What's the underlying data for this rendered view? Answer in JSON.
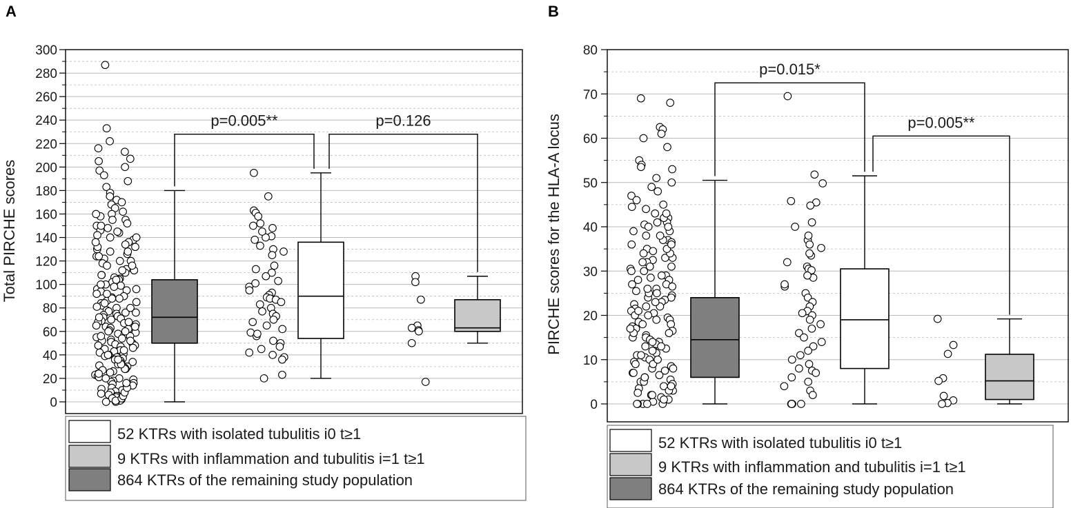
{
  "figure": {
    "colors": {
      "axis": "#000000",
      "grid": "#b8b8b8",
      "box_remaining": "#7f7f7f",
      "box_isolated": "#ffffff",
      "box_inflammation": "#c8c8c8",
      "point_fill": "#ffffff",
      "point_stroke": "#000000"
    },
    "legend": [
      {
        "label": "52 KTRs with isolated tubulitis i0 t≥1",
        "color": "#ffffff"
      },
      {
        "label": "9 KTRs with inflammation and tubulitis i=1 t≥1",
        "color": "#c8c8c8"
      },
      {
        "label": "864 KTRs of the remaining study population",
        "color": "#7f7f7f"
      }
    ]
  },
  "chart_data": [
    {
      "panel": "A",
      "type": "box",
      "ylabel": "Total PIRCHE scores",
      "ylim": [
        -10,
        300
      ],
      "ytick_step": 20,
      "grid": true,
      "groups": [
        {
          "name": "864 KTRs of the remaining study population",
          "color": "#7f7f7f",
          "whisker_low": 0,
          "q1": 50,
          "median": 72,
          "q3": 104,
          "whisker_high": 180,
          "points": [
            287,
            233,
            222,
            216,
            213,
            207,
            205,
            200,
            197,
            193,
            188,
            183,
            178,
            175,
            172,
            170,
            168,
            165,
            162,
            160,
            158,
            155,
            152,
            150,
            148,
            146,
            144,
            142,
            140,
            138,
            136,
            134,
            132,
            130,
            128,
            126,
            124,
            122,
            120,
            118,
            116,
            114,
            113,
            112,
            110,
            108,
            106,
            105,
            104,
            102,
            100,
            99,
            98,
            96,
            95,
            94,
            92,
            90,
            89,
            88,
            86,
            85,
            84,
            82,
            81,
            80,
            78,
            77,
            76,
            75,
            74,
            73,
            72,
            71,
            70,
            69,
            68,
            67,
            66,
            65,
            64,
            63,
            62,
            61,
            60,
            59,
            58,
            57,
            56,
            55,
            54,
            53,
            52,
            51,
            50,
            49,
            48,
            47,
            46,
            45,
            44,
            43,
            42,
            41,
            40,
            39,
            38,
            37,
            36,
            35,
            34,
            33,
            32,
            31,
            30,
            29,
            28,
            27,
            26,
            25,
            24,
            23,
            22,
            21,
            20,
            19,
            18,
            17,
            16,
            15,
            14,
            13,
            12,
            11,
            10,
            9,
            8,
            7,
            6,
            5,
            4,
            3,
            2,
            1,
            0,
            0,
            1,
            3,
            5,
            8,
            12,
            16,
            20,
            24,
            28,
            32,
            36,
            40,
            44,
            48,
            52,
            56,
            60,
            64,
            68,
            72,
            76,
            80,
            84,
            88,
            92,
            96,
            100,
            104,
            108,
            112,
            116,
            120,
            124,
            128,
            132,
            136,
            140,
            145,
            150,
            155,
            160
          ]
        },
        {
          "name": "52 KTRs with isolated tubulitis i0 t≥1",
          "color": "#ffffff",
          "whisker_low": 20,
          "q1": 54,
          "median": 90,
          "q3": 136,
          "whisker_high": 195,
          "points": [
            195,
            175,
            163,
            161,
            158,
            152,
            150,
            148,
            141,
            140,
            138,
            133,
            130,
            128,
            116,
            113,
            110,
            103,
            101,
            98,
            95,
            93,
            91,
            89,
            88,
            87,
            85,
            80,
            77,
            75,
            73,
            70,
            68,
            65,
            62,
            59,
            56,
            52,
            50,
            47,
            45,
            42,
            40,
            38,
            36,
            23,
            20,
            58,
            83,
            107,
            125,
            145
          ]
        },
        {
          "name": "9 KTRs with inflammation and tubulitis i=1 t≥1",
          "color": "#c8c8c8",
          "whisker_low": 50,
          "q1": 60,
          "median": 63,
          "q3": 87,
          "whisker_high": 107,
          "points": [
            107,
            102,
            87,
            65,
            63,
            61,
            60,
            50,
            17
          ]
        }
      ],
      "comparisons": [
        {
          "label": "p=0.005**",
          "from": 0,
          "to": 1,
          "y": 228
        },
        {
          "label": "p=0.126",
          "from": 1,
          "to": 2,
          "y": 228
        }
      ]
    },
    {
      "panel": "B",
      "type": "box",
      "ylabel": "PIRCHE scores for the HLA-A locus",
      "ylim": [
        -2,
        80
      ],
      "ytick_step": 10,
      "grid": true,
      "groups": [
        {
          "name": "864 KTRs of the remaining study population",
          "color": "#7f7f7f",
          "whisker_low": 0,
          "q1": 6,
          "median": 14.5,
          "q3": 24,
          "whisker_high": 50.5,
          "points": [
            69,
            68,
            62.5,
            62,
            61,
            60,
            58,
            55,
            54,
            53.5,
            53,
            51,
            50,
            49,
            48,
            47,
            46,
            45,
            44.5,
            44,
            43,
            42,
            41,
            40.5,
            40,
            39,
            38,
            37,
            36.5,
            36,
            35,
            34.5,
            34,
            33,
            32.5,
            32,
            31,
            30.5,
            30,
            29,
            28.5,
            28,
            27,
            26.5,
            26,
            25.5,
            25,
            24.5,
            24,
            23.5,
            23,
            22.5,
            22,
            21.5,
            21,
            20.5,
            20,
            19.5,
            19,
            18.5,
            18,
            17.5,
            17,
            16.5,
            16,
            15.5,
            15,
            14.5,
            14,
            13.5,
            13,
            12.5,
            12,
            11.5,
            11,
            10.5,
            10,
            9.5,
            9,
            8.5,
            8,
            7.5,
            7,
            6.5,
            6,
            5.5,
            5,
            4.5,
            4,
            3.5,
            3,
            2.5,
            2,
            1.5,
            1,
            0.5,
            0,
            0,
            0,
            0,
            0,
            1,
            2,
            3,
            4,
            5,
            6,
            7,
            8,
            9,
            10,
            11,
            12,
            13,
            14,
            15,
            16,
            17,
            18,
            19,
            20,
            21,
            22,
            23,
            24,
            25,
            26,
            27,
            28,
            29,
            30,
            31,
            32,
            33,
            34,
            35,
            36,
            37,
            38,
            39,
            40,
            41,
            42,
            43
          ]
        },
        {
          "name": "52 KTRs with isolated tubulitis i0 t≥1",
          "color": "#ffffff",
          "whisker_low": 0,
          "q1": 8,
          "median": 19,
          "q3": 30.5,
          "whisker_high": 51.5,
          "points": [
            69.5,
            51.8,
            49.8,
            45.8,
            45.5,
            44.8,
            41,
            37,
            35.2,
            33.5,
            32,
            31,
            30.5,
            30.2,
            28.5,
            26.5,
            25,
            24,
            23,
            22,
            21,
            20.5,
            20,
            19,
            17,
            16,
            15,
            14,
            13,
            12,
            11,
            10,
            9,
            8,
            7.5,
            7,
            6,
            5,
            3,
            0,
            0,
            0,
            0,
            2,
            4,
            18,
            27,
            29,
            34,
            36,
            38,
            40
          ]
        },
        {
          "name": "9 KTRs with inflammation and tubulitis i=1 t≥1",
          "color": "#c8c8c8",
          "whisker_low": 0,
          "q1": 1,
          "median": 5.2,
          "q3": 11.2,
          "whisker_high": 19.2,
          "points": [
            19.2,
            13.3,
            11.3,
            5.8,
            5.2,
            1.8,
            0.8,
            0.2,
            0
          ]
        }
      ],
      "comparisons": [
        {
          "label": "p=0.015*",
          "from": 0,
          "to": 1,
          "y": 72.5
        },
        {
          "label": "p=0.005**",
          "from": 1,
          "to": 2,
          "y": 60.5
        }
      ]
    }
  ]
}
